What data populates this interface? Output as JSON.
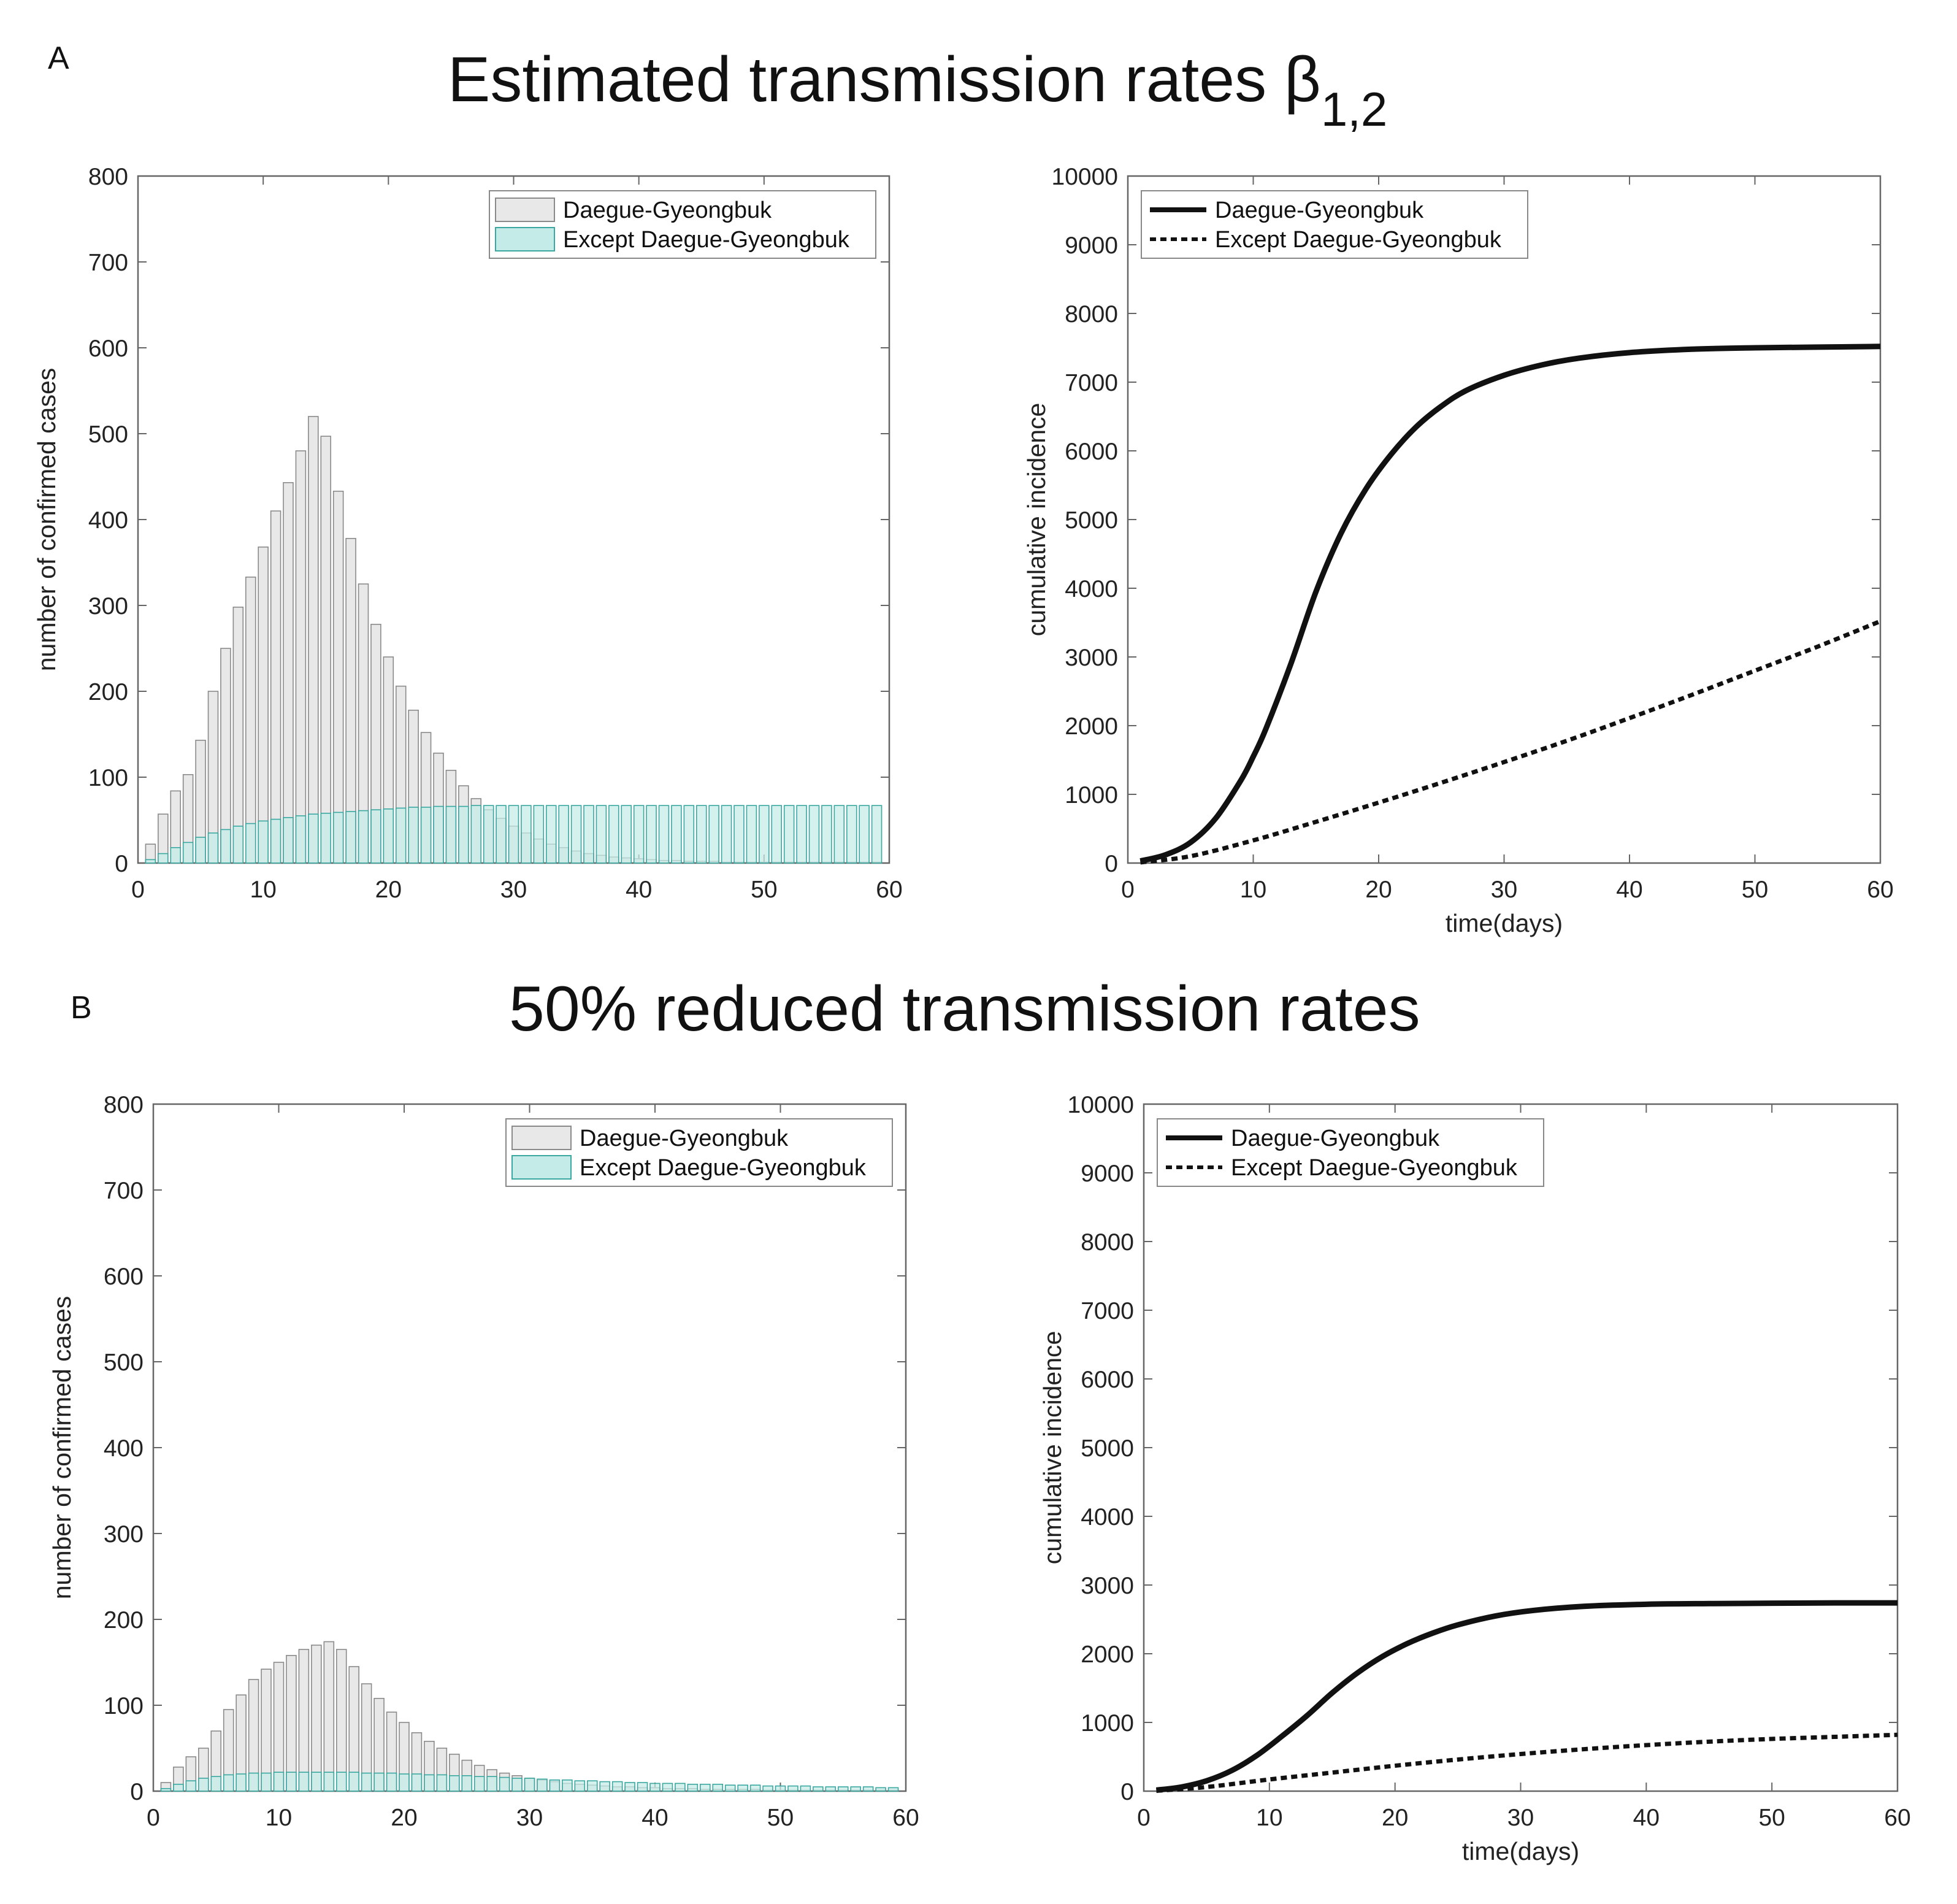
{
  "figure": {
    "panel_a": {
      "letter": "A",
      "title_main": "Estimated transmission rates β",
      "title_subscript": "1,2"
    },
    "panel_b": {
      "letter": "B",
      "title_main": "50% reduced transmission rates"
    }
  },
  "colors": {
    "gray_bar_fill": "#e8e8e8",
    "gray_bar_edge": "#8a8a8a",
    "teal_bar_fill": "#c5ebe8",
    "teal_bar_edge": "#3aa8a0",
    "line": "#111111",
    "axis": "#666666"
  },
  "chart_data": [
    {
      "id": "A-left",
      "type": "bar",
      "title": "",
      "xlabel": "",
      "ylabel": "number of confirmed cases",
      "xlim": [
        0,
        60
      ],
      "ylim": [
        0,
        800
      ],
      "xticks": [
        0,
        10,
        20,
        30,
        40,
        50,
        60
      ],
      "yticks": [
        0,
        100,
        200,
        300,
        400,
        500,
        600,
        700,
        800
      ],
      "legend": [
        "Daegue-Gyeongbuk",
        "Except Daegue-Gyeongbuk"
      ],
      "legend_position": "top-right",
      "x": [
        1,
        2,
        3,
        4,
        5,
        6,
        7,
        8,
        9,
        10,
        11,
        12,
        13,
        14,
        15,
        16,
        17,
        18,
        19,
        20,
        21,
        22,
        23,
        24,
        25,
        26,
        27,
        28,
        29,
        30,
        31,
        32,
        33,
        34,
        35,
        36,
        37,
        38,
        39,
        40,
        41,
        42,
        43,
        44,
        45,
        46,
        47,
        48,
        49,
        50,
        51,
        52,
        53,
        54,
        55,
        56,
        57,
        58,
        59
      ],
      "series": [
        {
          "name": "Daegue-Gyeongbuk",
          "values": [
            22,
            57,
            84,
            103,
            143,
            200,
            250,
            298,
            333,
            368,
            410,
            443,
            480,
            520,
            497,
            433,
            378,
            325,
            278,
            240,
            206,
            178,
            152,
            128,
            108,
            90,
            75,
            62,
            52,
            43,
            35,
            28,
            22,
            18,
            14,
            11,
            9,
            7,
            6,
            5,
            4,
            3,
            3,
            2,
            2,
            2,
            1,
            1,
            1,
            1,
            1,
            1,
            1,
            1,
            1,
            1,
            1,
            1,
            1
          ]
        },
        {
          "name": "Except Daegue-Gyeongbuk",
          "values": [
            4,
            11,
            18,
            24,
            30,
            35,
            39,
            43,
            46,
            49,
            51,
            53,
            55,
            57,
            58,
            59,
            60,
            61,
            62,
            63,
            64,
            65,
            65,
            66,
            66,
            66,
            67,
            67,
            67,
            67,
            67,
            67,
            67,
            67,
            67,
            67,
            67,
            67,
            67,
            67,
            67,
            67,
            67,
            67,
            67,
            67,
            67,
            67,
            67,
            67,
            67,
            67,
            67,
            67,
            67,
            67,
            67,
            67,
            67
          ]
        }
      ]
    },
    {
      "id": "A-right",
      "type": "line",
      "title": "",
      "xlabel": "time(days)",
      "ylabel": "cumulative incidence",
      "xlim": [
        0,
        60
      ],
      "ylim": [
        0,
        10000
      ],
      "xticks": [
        0,
        10,
        20,
        30,
        40,
        50,
        60
      ],
      "yticks": [
        0,
        1000,
        2000,
        3000,
        4000,
        5000,
        6000,
        7000,
        8000,
        9000,
        10000
      ],
      "legend": [
        "Daegue-Gyeongbuk",
        "Except Daegue-Gyeongbuk"
      ],
      "legend_position": "top-left",
      "series": [
        {
          "name": "Daegue-Gyeongbuk",
          "style": "solid",
          "x": [
            1,
            3,
            5,
            7,
            9,
            10,
            11,
            13,
            15,
            17,
            19,
            21,
            23,
            25,
            27,
            30,
            33,
            36,
            40,
            45,
            50,
            55,
            60
          ],
          "values": [
            30,
            120,
            300,
            650,
            1200,
            1550,
            1950,
            2900,
            3950,
            4800,
            5450,
            5950,
            6350,
            6650,
            6880,
            7100,
            7250,
            7350,
            7430,
            7480,
            7500,
            7510,
            7520
          ]
        },
        {
          "name": "Except Daegue-Gyeongbuk",
          "style": "dotted",
          "x": [
            1,
            5,
            10,
            15,
            20,
            25,
            30,
            35,
            40,
            45,
            50,
            55,
            60
          ],
          "values": [
            10,
            100,
            330,
            600,
            880,
            1170,
            1470,
            1780,
            2110,
            2450,
            2800,
            3150,
            3520
          ]
        }
      ]
    },
    {
      "id": "B-left",
      "type": "bar",
      "title": "",
      "xlabel": "",
      "ylabel": "number of confirmed cases",
      "xlim": [
        0,
        60
      ],
      "ylim": [
        0,
        800
      ],
      "xticks": [
        0,
        10,
        20,
        30,
        40,
        50,
        60
      ],
      "yticks": [
        0,
        100,
        200,
        300,
        400,
        500,
        600,
        700,
        800
      ],
      "legend": [
        "Daegue-Gyeongbuk",
        "Except Daegue-Gyeongbuk"
      ],
      "legend_position": "top-right",
      "x": [
        1,
        2,
        3,
        4,
        5,
        6,
        7,
        8,
        9,
        10,
        11,
        12,
        13,
        14,
        15,
        16,
        17,
        18,
        19,
        20,
        21,
        22,
        23,
        24,
        25,
        26,
        27,
        28,
        29,
        30,
        31,
        32,
        33,
        34,
        35,
        36,
        37,
        38,
        39,
        40,
        41,
        42,
        43,
        44,
        45,
        46,
        47,
        48,
        49,
        50,
        51,
        52,
        53,
        54,
        55,
        56,
        57,
        58,
        59
      ],
      "series": [
        {
          "name": "Daegue-Gyeongbuk",
          "values": [
            10,
            28,
            40,
            50,
            70,
            95,
            112,
            130,
            142,
            150,
            158,
            165,
            170,
            174,
            165,
            145,
            125,
            108,
            92,
            80,
            68,
            58,
            50,
            43,
            36,
            30,
            25,
            21,
            18,
            15,
            13,
            11,
            9,
            8,
            7,
            6,
            5,
            5,
            4,
            4,
            3,
            3,
            3,
            2,
            2,
            2,
            2,
            2,
            1,
            1,
            1,
            1,
            1,
            1,
            1,
            1,
            1,
            1,
            1
          ]
        },
        {
          "name": "Except Daegue-Gyeongbuk",
          "values": [
            3,
            8,
            12,
            15,
            17,
            19,
            20,
            21,
            21,
            22,
            22,
            22,
            22,
            22,
            22,
            22,
            21,
            21,
            21,
            20,
            20,
            19,
            19,
            18,
            18,
            17,
            17,
            16,
            15,
            15,
            14,
            13,
            13,
            12,
            12,
            11,
            11,
            10,
            10,
            9,
            9,
            9,
            8,
            8,
            8,
            7,
            7,
            7,
            6,
            6,
            6,
            6,
            5,
            5,
            5,
            5,
            5,
            4,
            4
          ]
        }
      ]
    },
    {
      "id": "B-right",
      "type": "line",
      "title": "",
      "xlabel": "time(days)",
      "ylabel": "cumulative incidence",
      "xlim": [
        0,
        60
      ],
      "ylim": [
        0,
        10000
      ],
      "xticks": [
        0,
        10,
        20,
        30,
        40,
        50,
        60
      ],
      "yticks": [
        0,
        1000,
        2000,
        3000,
        4000,
        5000,
        6000,
        7000,
        8000,
        9000,
        10000
      ],
      "legend": [
        "Daegue-Gyeongbuk",
        "Except Daegue-Gyeongbuk"
      ],
      "legend_position": "top-left",
      "series": [
        {
          "name": "Daegue-Gyeongbuk",
          "style": "solid",
          "x": [
            1,
            3,
            5,
            7,
            9,
            11,
            13,
            15,
            17,
            19,
            21,
            23,
            25,
            28,
            31,
            35,
            40,
            45,
            50,
            55,
            60
          ],
          "values": [
            15,
            60,
            150,
            300,
            520,
            800,
            1100,
            1430,
            1720,
            1960,
            2150,
            2300,
            2420,
            2550,
            2630,
            2690,
            2720,
            2730,
            2735,
            2740,
            2740
          ]
        },
        {
          "name": "Except Daegue-Gyeongbuk",
          "style": "dotted",
          "x": [
            1,
            5,
            10,
            15,
            20,
            25,
            30,
            35,
            40,
            45,
            50,
            55,
            60
          ],
          "values": [
            5,
            60,
            170,
            270,
            370,
            460,
            540,
            610,
            670,
            720,
            760,
            790,
            820
          ]
        }
      ]
    }
  ]
}
